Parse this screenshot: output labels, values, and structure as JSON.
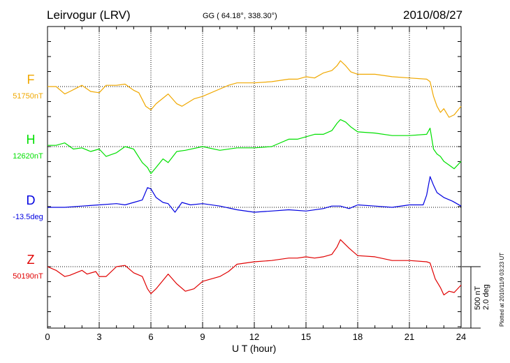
{
  "header": {
    "station": "Leirvogur (LRV)",
    "coords": "GG ( 64.18°, 338.30°)",
    "date": "2010/08/27"
  },
  "footer": {
    "plotted": "Plotted at 2010/11/9 03:23 UT"
  },
  "scale": {
    "nt": "500 nT",
    "deg": "2.0 deg"
  },
  "chart_data": {
    "type": "line",
    "title": "",
    "xlabel": "U T (hour)",
    "xlim": [
      0,
      24
    ],
    "xticks": [
      "0",
      "3",
      "6",
      "9",
      "12",
      "15",
      "18",
      "21",
      "24"
    ],
    "grid": true,
    "series": [
      {
        "name": "F",
        "baseline_label": "51750nT",
        "color": "#f0a800",
        "x": [
          0,
          0.5,
          1,
          1.3,
          2,
          2.5,
          3,
          3.4,
          4,
          4.5,
          5,
          5.3,
          5.7,
          6,
          6.3,
          7,
          7.5,
          7.8,
          8.5,
          9,
          10,
          10.5,
          11,
          12,
          13,
          14,
          14.5,
          15,
          15.5,
          16,
          16.5,
          16.8,
          17,
          17.3,
          17.6,
          18,
          19,
          20,
          21,
          22,
          22.2,
          22.4,
          22.6,
          22.8,
          23,
          23.3,
          23.6,
          24
        ],
        "values": [
          0,
          0,
          -60,
          -40,
          10,
          -40,
          -50,
          10,
          10,
          20,
          -30,
          -50,
          -160,
          -190,
          -140,
          -60,
          -140,
          -160,
          -100,
          -80,
          -20,
          10,
          30,
          30,
          40,
          60,
          60,
          80,
          70,
          110,
          130,
          170,
          210,
          170,
          120,
          100,
          100,
          80,
          70,
          60,
          40,
          -80,
          -160,
          -210,
          -180,
          -250,
          -230,
          -160
        ]
      },
      {
        "name": "H",
        "baseline_label": "12620nT",
        "color": "#00e000",
        "x": [
          0,
          0.5,
          1,
          1.5,
          2,
          2.5,
          3,
          3.4,
          4,
          4.5,
          5,
          5.5,
          5.8,
          6,
          6.3,
          6.7,
          7,
          7.5,
          8,
          9,
          10,
          11,
          12,
          13,
          14,
          14.5,
          15,
          15.5,
          16,
          16.5,
          16.8,
          17,
          17.3,
          17.6,
          18,
          19,
          20,
          21,
          22,
          22.2,
          22.4,
          22.6,
          22.8,
          23,
          23.3,
          23.6,
          24
        ],
        "values": [
          10,
          10,
          30,
          -20,
          -10,
          -40,
          -20,
          -80,
          -50,
          0,
          -20,
          -130,
          -170,
          -220,
          -170,
          -100,
          -130,
          -40,
          -30,
          0,
          -30,
          -10,
          -10,
          0,
          60,
          60,
          80,
          100,
          100,
          130,
          190,
          220,
          200,
          160,
          120,
          110,
          90,
          90,
          100,
          150,
          -20,
          -60,
          -80,
          -120,
          -150,
          -180,
          -120
        ]
      },
      {
        "name": "D",
        "baseline_label": "-13.5deg",
        "color": "#0000e0",
        "x": [
          0,
          1,
          2,
          3,
          4,
          4.5,
          5,
          5.5,
          5.8,
          6,
          6.3,
          6.7,
          7,
          7.4,
          7.8,
          8.3,
          9,
          10,
          11,
          12,
          13,
          14,
          15,
          16,
          16.5,
          17,
          17.5,
          18,
          19,
          20,
          21,
          21.8,
          22,
          22.2,
          22.4,
          22.6,
          23,
          23.5,
          24
        ],
        "values": [
          0,
          0,
          10,
          20,
          30,
          20,
          40,
          60,
          160,
          150,
          80,
          40,
          30,
          -40,
          40,
          20,
          30,
          10,
          -20,
          -40,
          -30,
          -20,
          -30,
          -10,
          10,
          10,
          -10,
          20,
          10,
          0,
          20,
          20,
          100,
          250,
          180,
          120,
          80,
          50,
          10
        ]
      },
      {
        "name": "Z",
        "baseline_label": "50190nT",
        "color": "#e00000",
        "x": [
          0,
          0.5,
          1,
          1.3,
          2,
          2.3,
          2.8,
          3,
          3.4,
          4,
          4.5,
          5,
          5.5,
          5.8,
          6,
          6.3,
          7,
          7.5,
          8,
          8.5,
          9,
          10,
          10.5,
          11,
          12,
          13,
          14,
          14.5,
          15,
          15.5,
          16,
          16.5,
          16.8,
          17,
          17.5,
          18,
          19,
          20,
          21,
          22,
          22.2,
          22.5,
          22.8,
          23,
          23.3,
          23.6,
          24
        ],
        "values": [
          0,
          -30,
          -80,
          -70,
          -30,
          -60,
          -40,
          -80,
          -80,
          0,
          10,
          -50,
          -80,
          -180,
          -220,
          -180,
          -60,
          -140,
          -200,
          -180,
          -120,
          -80,
          -40,
          20,
          40,
          50,
          70,
          70,
          80,
          70,
          80,
          100,
          160,
          220,
          150,
          90,
          80,
          50,
          50,
          40,
          30,
          -100,
          -170,
          -230,
          -200,
          -210,
          -150
        ]
      }
    ]
  }
}
